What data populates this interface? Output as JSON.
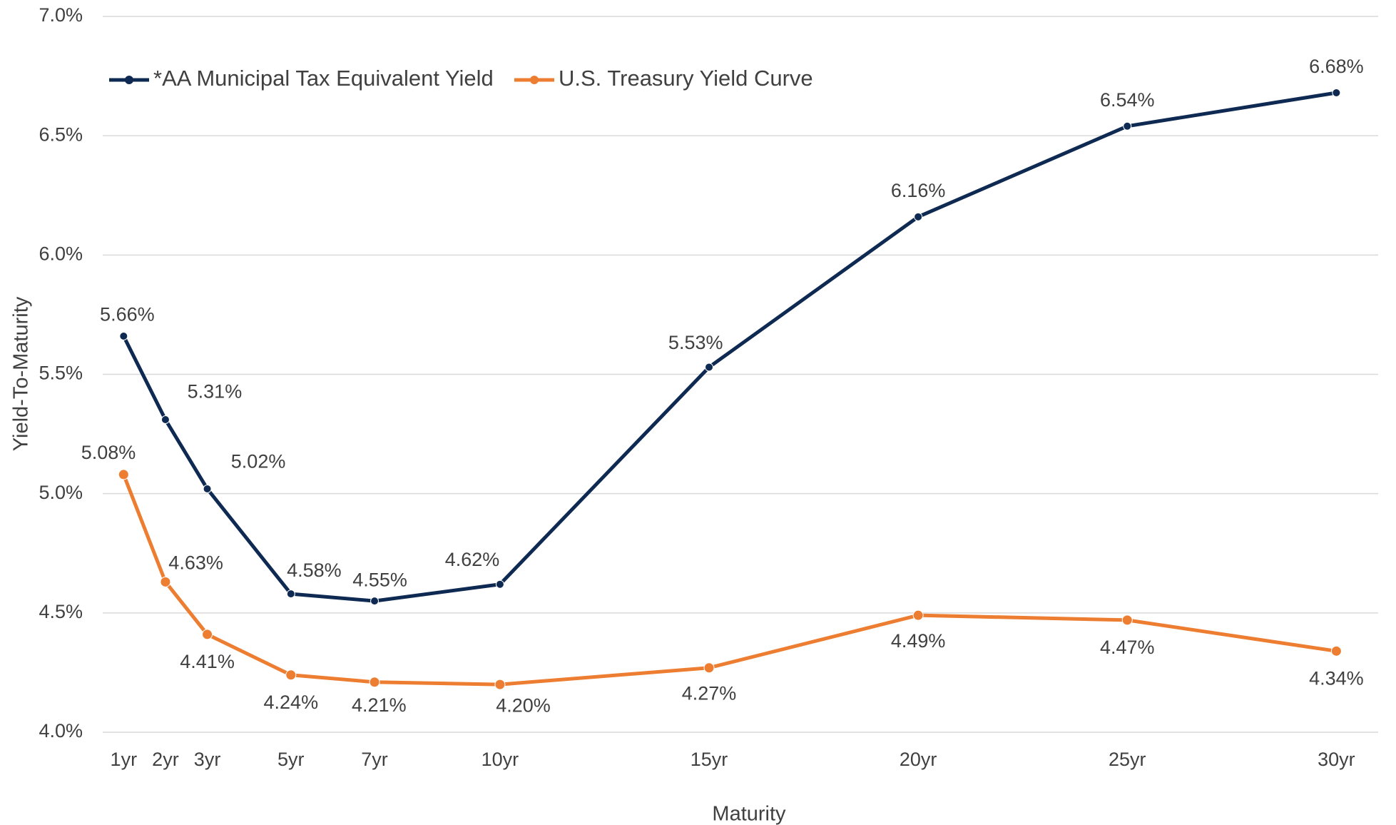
{
  "chart_data": {
    "type": "line",
    "x_label": "Maturity",
    "y_label": "Yield-To-Maturity",
    "x": [
      1,
      2,
      3,
      5,
      7,
      10,
      15,
      20,
      25,
      30
    ],
    "xlim": [
      0.5,
      31
    ],
    "xticks": [
      {
        "value": 1,
        "label": "1yr"
      },
      {
        "value": 2,
        "label": "2yr"
      },
      {
        "value": 3,
        "label": "3yr"
      },
      {
        "value": 5,
        "label": "5yr"
      },
      {
        "value": 7,
        "label": "7yr"
      },
      {
        "value": 10,
        "label": "10yr"
      },
      {
        "value": 15,
        "label": "15yr"
      },
      {
        "value": 20,
        "label": "20yr"
      },
      {
        "value": 25,
        "label": "25yr"
      },
      {
        "value": 30,
        "label": "30yr"
      }
    ],
    "ylim": [
      4.0,
      7.0
    ],
    "yticks": [
      {
        "value": 4.0,
        "label": "4.0%"
      },
      {
        "value": 4.5,
        "label": "4.5%"
      },
      {
        "value": 5.0,
        "label": "5.0%"
      },
      {
        "value": 5.5,
        "label": "5.5%"
      },
      {
        "value": 6.0,
        "label": "6.0%"
      },
      {
        "value": 6.5,
        "label": "6.5%"
      },
      {
        "value": 7.0,
        "label": "7.0%"
      }
    ],
    "grid": true,
    "legend": "top-left",
    "series": [
      {
        "name": "*AA Municipal Tax Equivalent Yield",
        "color": "#0e2a52",
        "values": [
          5.66,
          5.31,
          5.02,
          4.58,
          4.55,
          4.62,
          5.53,
          6.16,
          6.54,
          6.68
        ],
        "value_labels": [
          "5.66%",
          "5.31%",
          "5.02%",
          "4.58%",
          "4.55%",
          "4.62%",
          "5.53%",
          "6.16%",
          "6.54%",
          "6.68%"
        ]
      },
      {
        "name": "U.S. Treasury Yield Curve",
        "color": "#ed7d31",
        "values": [
          5.08,
          4.63,
          4.41,
          4.24,
          4.21,
          4.2,
          4.27,
          4.49,
          4.47,
          4.34
        ],
        "value_labels": [
          "5.08%",
          "4.63%",
          "4.41%",
          "4.24%",
          "4.21%",
          "4.20%",
          "4.27%",
          "4.49%",
          "4.47%",
          "4.34%"
        ]
      }
    ]
  }
}
